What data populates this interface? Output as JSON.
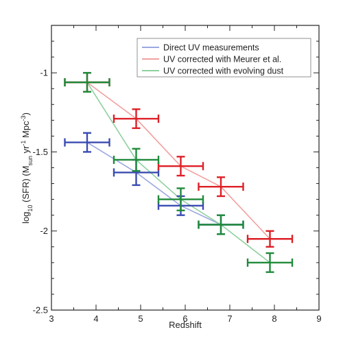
{
  "chart_data": {
    "type": "line",
    "title": "",
    "xlabel": "Redshift",
    "ylabel_parts": {
      "log": "log",
      "log_sub": "10",
      "sfr": " (SFR) (M",
      "sun_sub": "sun",
      "yr": " yr",
      "yr_sup": "-1",
      "mpc": " Mpc",
      "mpc_sup": "-3",
      "close": ")"
    },
    "xlim": [
      3,
      9
    ],
    "ylim": [
      -2.5,
      -0.7
    ],
    "xticks": [
      3,
      4,
      5,
      6,
      7,
      8,
      9
    ],
    "yticks": [
      -2.5,
      -2,
      -1.5,
      -1
    ],
    "xtick_labels": [
      "3",
      "4",
      "5",
      "6",
      "7",
      "8",
      "9"
    ],
    "ytick_labels": [
      "-2.5",
      "-2",
      "-1.5",
      "-1"
    ],
    "grid": false,
    "legend_position": "top-right",
    "series": [
      {
        "name": "Direct UV measurements",
        "color": "#3a4bb0",
        "line_color": "#9aa8e0",
        "points": [
          {
            "x": 3.8,
            "y": -1.44,
            "xerr_lo": 0.5,
            "xerr_hi": 0.5,
            "yerr": 0.06
          },
          {
            "x": 4.9,
            "y": -1.63,
            "xerr_lo": 0.5,
            "xerr_hi": 0.5,
            "yerr": 0.08
          },
          {
            "x": 5.9,
            "y": -1.84,
            "xerr_lo": 0.5,
            "xerr_hi": 0.5,
            "yerr": 0.06
          },
          {
            "x": 6.8,
            "y": -1.96,
            "xerr_lo": 0.5,
            "xerr_hi": 0.5,
            "yerr": 0.06
          }
        ]
      },
      {
        "name": "UV corrected with Meurer et al.",
        "color": "#dd1f26",
        "line_color": "#f2a0a0",
        "points": [
          {
            "x": 3.8,
            "y": -1.06,
            "xerr_lo": 0.5,
            "xerr_hi": 0.5,
            "yerr": 0.06
          },
          {
            "x": 4.9,
            "y": -1.29,
            "xerr_lo": 0.5,
            "xerr_hi": 0.5,
            "yerr": 0.06
          },
          {
            "x": 5.9,
            "y": -1.59,
            "xerr_lo": 0.5,
            "xerr_hi": 0.5,
            "yerr": 0.06
          },
          {
            "x": 6.8,
            "y": -1.72,
            "xerr_lo": 0.5,
            "xerr_hi": 0.5,
            "yerr": 0.06
          },
          {
            "x": 7.9,
            "y": -2.05,
            "xerr_lo": 0.5,
            "xerr_hi": 0.5,
            "yerr": 0.05
          }
        ]
      },
      {
        "name": "UV corrected with evolving dust",
        "color": "#1f8a3a",
        "line_color": "#8fd0a0",
        "points": [
          {
            "x": 3.8,
            "y": -1.06,
            "xerr_lo": 0.5,
            "xerr_hi": 0.5,
            "yerr": 0.06
          },
          {
            "x": 4.9,
            "y": -1.55,
            "xerr_lo": 0.5,
            "xerr_hi": 0.5,
            "yerr": 0.07
          },
          {
            "x": 5.9,
            "y": -1.8,
            "xerr_lo": 0.5,
            "xerr_hi": 0.5,
            "yerr": 0.07
          },
          {
            "x": 6.8,
            "y": -1.96,
            "xerr_lo": 0.5,
            "xerr_hi": 0.5,
            "yerr": 0.06
          },
          {
            "x": 7.9,
            "y": -2.2,
            "xerr_lo": 0.5,
            "xerr_hi": 0.5,
            "yerr": 0.06
          }
        ]
      }
    ]
  }
}
